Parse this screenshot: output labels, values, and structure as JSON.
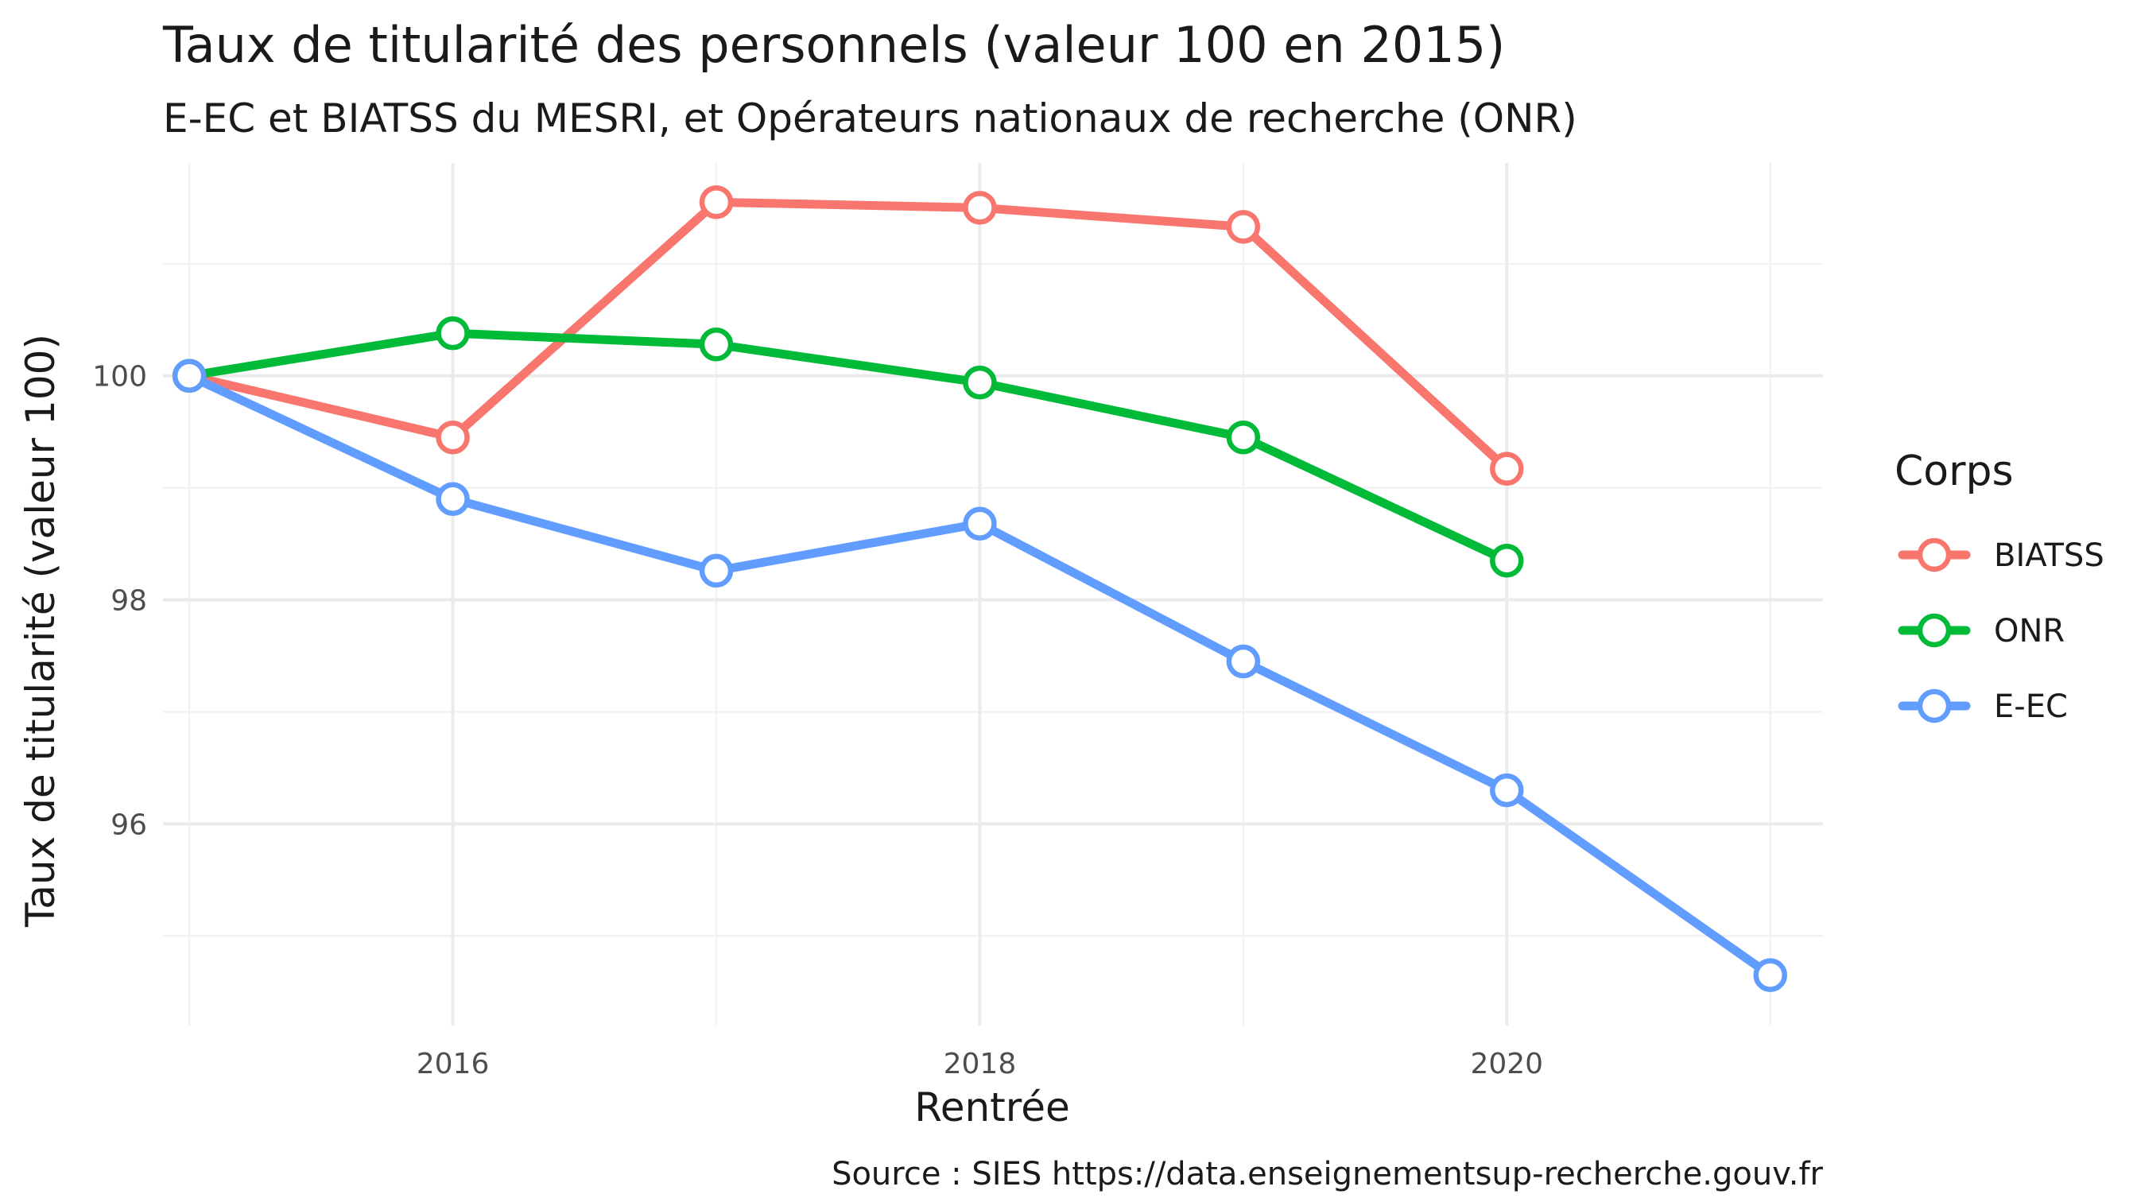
{
  "chart_data": {
    "type": "line",
    "title": "Taux de titularité des personnels (valeur 100 en 2015)",
    "subtitle": "E-EC et BIATSS du MESRI, et Opérateurs nationaux de recherche (ONR)",
    "xlabel": "Rentrée",
    "ylabel": "Taux de titularité (valeur 100)",
    "caption": "Source : SIES https://data.enseignementsup-recherche.gouv.fr",
    "legend_title": "Corps",
    "legend_position": "right",
    "grid": true,
    "xlim": [
      2014.9,
      2021.2
    ],
    "ylim": [
      94.2,
      101.9
    ],
    "x_ticks": [
      2016,
      2018,
      2020
    ],
    "y_ticks": [
      96,
      98,
      100
    ],
    "x_minor": [
      2015,
      2017,
      2019,
      2021
    ],
    "y_minor": [
      95,
      97,
      99,
      101
    ],
    "x": [
      2015,
      2016,
      2017,
      2018,
      2019,
      2020,
      2021
    ],
    "series": [
      {
        "name": "BIATSS",
        "color": "#F8766D",
        "values": [
          100,
          99.45,
          101.55,
          101.5,
          101.33,
          99.17,
          null
        ]
      },
      {
        "name": "ONR",
        "color": "#00BA38",
        "values": [
          100,
          100.38,
          100.28,
          99.94,
          99.45,
          98.35,
          null
        ]
      },
      {
        "name": "E-EC",
        "color": "#619CFF",
        "values": [
          100,
          98.9,
          98.26,
          98.68,
          97.45,
          96.3,
          94.65
        ]
      }
    ]
  }
}
